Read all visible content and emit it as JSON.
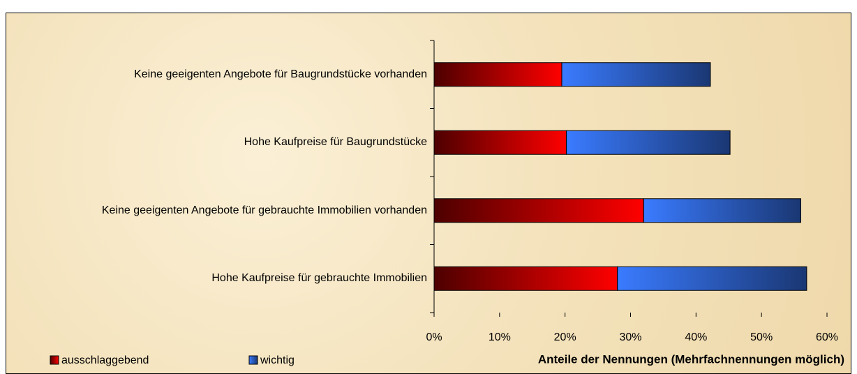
{
  "chart_data": {
    "type": "stacked-barh",
    "x_label": "Anteile der Nennungen (Mehrfachnennungen möglich)",
    "categories": [
      "Keine geeigenten Angebote für Baugrundstücke vorhanden",
      "Hohe Kaufpreise für Baugrundstücke",
      "Keine geeigenten Angebote für gebrauchte Immobilien vorhanden",
      "Hohe Kaufpreise für gebrauchte Immobilien"
    ],
    "series": [
      {
        "name": "ausschlaggebend",
        "color": "#ff0000",
        "values": [
          19.5,
          20.2,
          32,
          28
        ]
      },
      {
        "name": "wichtig",
        "color": "#3a7bff",
        "values": [
          22.7,
          25,
          24,
          28.9
        ]
      }
    ],
    "xlim": [
      0,
      60
    ],
    "xticks": [
      {
        "value": 0,
        "label": "0%"
      },
      {
        "value": 10,
        "label": "10%"
      },
      {
        "value": 20,
        "label": "20%"
      },
      {
        "value": 30,
        "label": "30%"
      },
      {
        "value": 40,
        "label": "40%"
      },
      {
        "value": 50,
        "label": "50%"
      },
      {
        "value": 60,
        "label": "60%"
      }
    ],
    "legend": "bottom-left"
  }
}
